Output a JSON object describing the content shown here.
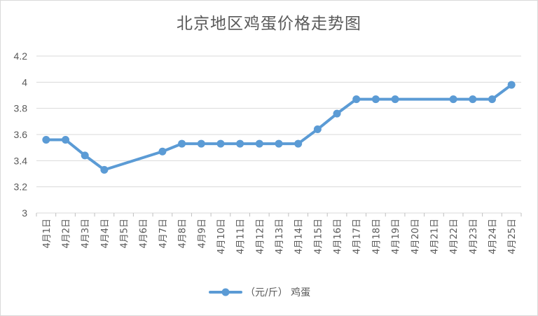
{
  "chart_data": {
    "type": "line",
    "title": "北京地区鸡蛋价格走势图",
    "categories": [
      "4月1日",
      "4月2日",
      "4月3日",
      "4月4日",
      "4月5日",
      "4月6日",
      "4月7日",
      "4月8日",
      "4月9日",
      "4月10日",
      "4月11日",
      "4月12日",
      "4月13日",
      "4月14日",
      "4月15日",
      "4月16日",
      "4月17日",
      "4月18日",
      "4月19日",
      "4月20日",
      "4月21日",
      "4月22日",
      "4月23日",
      "4月24日",
      "4月25日"
    ],
    "series": [
      {
        "name": "（元/斤） 鸡蛋",
        "color": "#5b9bd5",
        "values": [
          3.56,
          3.56,
          3.44,
          3.33,
          null,
          null,
          3.47,
          3.53,
          3.53,
          3.53,
          3.53,
          3.53,
          3.53,
          3.53,
          3.64,
          3.76,
          3.87,
          3.87,
          3.87,
          null,
          null,
          3.87,
          3.87,
          3.87,
          3.98
        ]
      }
    ],
    "ylim": [
      3,
      4.2
    ],
    "yticks": [
      "3",
      "3.2",
      "3.4",
      "3.6",
      "3.8",
      "4",
      "4.2"
    ],
    "grid": true,
    "legend": "bottom",
    "xlabel": "",
    "ylabel": ""
  }
}
